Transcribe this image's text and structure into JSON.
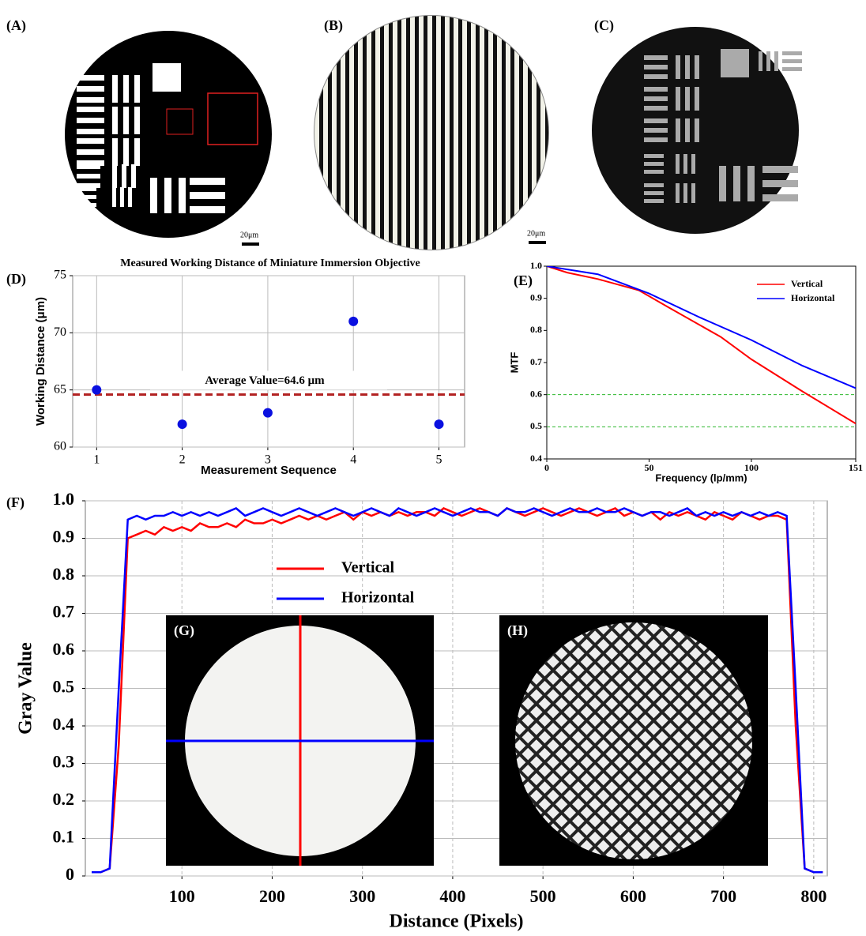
{
  "panels": [
    {
      "label": "(A)",
      "scale_bar": "20μm"
    },
    {
      "label": "(B)",
      "scale_bar": "20μm"
    },
    {
      "label": "(C)"
    }
  ],
  "insets": [
    {
      "label": "(G)"
    },
    {
      "label": "(H)"
    }
  ],
  "chart_data": [
    {
      "type": "scatter",
      "panel_label": "(D)",
      "title": "Measured Working Distance of Miniature Immersion Objective",
      "x_label": "Measurement Sequence",
      "y_label": "Working Distance (μm)",
      "x": [
        1,
        2,
        3,
        4,
        5
      ],
      "series": [
        {
          "color": "#0a10e0",
          "values": [
            65,
            62,
            63,
            71,
            62
          ]
        }
      ],
      "xlim": [
        0.72,
        5.3
      ],
      "ylim": [
        60,
        75
      ],
      "xticks": [
        1,
        2,
        3,
        4,
        5
      ],
      "yticks": [
        60,
        65,
        70,
        75
      ],
      "grid": true,
      "reference_lines": [
        {
          "value": 64.6,
          "color": "#b22222",
          "label": "Average Value=64.6 μm"
        }
      ]
    },
    {
      "type": "line",
      "panel_label": "(E)",
      "x_label": "Frequency (lp/mm)",
      "y_label": "MTF",
      "legend": "upper right",
      "series": [
        {
          "name": "Vertical",
          "color": "#ff0000",
          "x": [
            0,
            10,
            25,
            45,
            60,
            85,
            100,
            125,
            151
          ],
          "values": [
            1,
            0.98,
            0.96,
            0.925,
            0.87,
            0.78,
            0.71,
            0.61,
            0.51
          ]
        },
        {
          "name": "Horizontal",
          "color": "#0000ff",
          "x": [
            0,
            25,
            50,
            75,
            100,
            125,
            151
          ],
          "values": [
            1,
            0.975,
            0.915,
            0.84,
            0.77,
            0.69,
            0.62
          ]
        }
      ],
      "xlim": [
        0,
        151
      ],
      "ylim": [
        0.4,
        1
      ],
      "xticks": [
        0,
        50,
        100,
        151
      ],
      "yticks": [
        0.4,
        0.5,
        0.6,
        0.7,
        0.8,
        0.9,
        {
          "value": 1,
          "label": "1.0"
        }
      ],
      "grid": false,
      "reference_lines": [
        {
          "value": 0.6,
          "color": "#2db82d"
        },
        {
          "value": 0.5,
          "color": "#2db82d"
        }
      ]
    },
    {
      "type": "line",
      "panel_label": "(F)",
      "x_label": "Distance (Pixels)",
      "y_label": "Gray Value",
      "legend": "upper center",
      "x": [
        0,
        10,
        20,
        30,
        40,
        50,
        60,
        70,
        80,
        90,
        100,
        110,
        120,
        130,
        140,
        150,
        160,
        170,
        180,
        190,
        200,
        210,
        220,
        230,
        240,
        250,
        260,
        270,
        280,
        290,
        300,
        310,
        320,
        330,
        340,
        350,
        360,
        370,
        380,
        390,
        400,
        410,
        420,
        430,
        440,
        450,
        460,
        470,
        480,
        490,
        500,
        510,
        520,
        530,
        540,
        550,
        560,
        570,
        580,
        590,
        600,
        610,
        620,
        630,
        640,
        650,
        660,
        670,
        680,
        690,
        700,
        710,
        720,
        730,
        740,
        750,
        760,
        770,
        780,
        790,
        800,
        810
      ],
      "series": [
        {
          "name": "Vertical",
          "color": "#ff0000",
          "values": [
            0.01,
            0.01,
            0.02,
            0.35,
            0.9,
            0.91,
            0.92,
            0.91,
            0.93,
            0.92,
            0.93,
            0.92,
            0.94,
            0.93,
            0.93,
            0.94,
            0.93,
            0.95,
            0.94,
            0.94,
            0.95,
            0.94,
            0.95,
            0.96,
            0.95,
            0.96,
            0.95,
            0.96,
            0.97,
            0.95,
            0.97,
            0.96,
            0.97,
            0.96,
            0.97,
            0.96,
            0.97,
            0.97,
            0.96,
            0.98,
            0.97,
            0.96,
            0.97,
            0.98,
            0.97,
            0.96,
            0.98,
            0.97,
            0.96,
            0.97,
            0.98,
            0.97,
            0.96,
            0.97,
            0.98,
            0.97,
            0.96,
            0.97,
            0.98,
            0.96,
            0.97,
            0.96,
            0.97,
            0.95,
            0.97,
            0.96,
            0.97,
            0.96,
            0.95,
            0.97,
            0.96,
            0.95,
            0.97,
            0.96,
            0.95,
            0.96,
            0.96,
            0.95,
            0.4,
            0.02,
            0.01,
            0.01
          ]
        },
        {
          "name": "Horizontal",
          "color": "#0000ff",
          "values": [
            0.01,
            0.01,
            0.02,
            0.5,
            0.95,
            0.96,
            0.95,
            0.96,
            0.96,
            0.97,
            0.96,
            0.97,
            0.96,
            0.97,
            0.96,
            0.97,
            0.98,
            0.96,
            0.97,
            0.98,
            0.97,
            0.96,
            0.97,
            0.98,
            0.97,
            0.96,
            0.97,
            0.98,
            0.97,
            0.96,
            0.97,
            0.98,
            0.97,
            0.96,
            0.98,
            0.97,
            0.96,
            0.97,
            0.98,
            0.97,
            0.96,
            0.97,
            0.98,
            0.97,
            0.97,
            0.96,
            0.98,
            0.97,
            0.97,
            0.98,
            0.97,
            0.96,
            0.97,
            0.98,
            0.97,
            0.97,
            0.98,
            0.97,
            0.97,
            0.98,
            0.97,
            0.96,
            0.97,
            0.97,
            0.96,
            0.97,
            0.98,
            0.96,
            0.97,
            0.96,
            0.97,
            0.96,
            0.97,
            0.96,
            0.97,
            0.96,
            0.97,
            0.96,
            0.5,
            0.02,
            0.01,
            0.01
          ]
        }
      ],
      "xlim": [
        -7,
        815
      ],
      "ylim": [
        0,
        1
      ],
      "xticks": [
        100,
        200,
        300,
        400,
        500,
        600,
        700,
        800
      ],
      "yticks": [
        0,
        0.1,
        0.2,
        0.3,
        0.4,
        0.5,
        0.6,
        0.7,
        0.8,
        0.9,
        {
          "value": 1,
          "label": "1.0"
        }
      ],
      "grid": true
    }
  ]
}
